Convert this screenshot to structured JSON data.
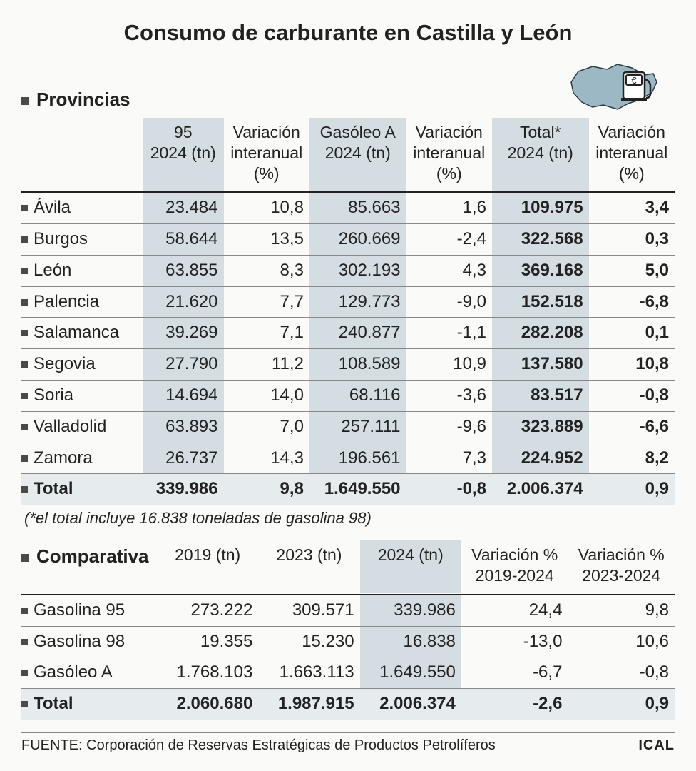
{
  "title": "Consumo de carburante en Castilla y León",
  "colors": {
    "shaded": "#d4dde2",
    "totalbg": "#e6ebee",
    "bullet": "#4a4a4a",
    "border": "#888888",
    "text": "#222222",
    "region_fill": "#9bb8c4",
    "region_stroke": "#2a3a44",
    "pump_body": "#ffffff"
  },
  "table1": {
    "section": "Provincias",
    "headers": {
      "c1a": "95",
      "c1b": "2024 (tn)",
      "c2a": "Variación",
      "c2b": "interanual",
      "c2c": "(%)",
      "c3a": "Gasóleo A",
      "c3b": "2024 (tn)",
      "c4a": "Variación",
      "c4b": "interanual",
      "c4c": "(%)",
      "c5a": "Total*",
      "c5b": "2024 (tn)",
      "c6a": "Variación",
      "c6b": "interanual",
      "c6c": "(%)"
    },
    "rows": [
      {
        "name": "Ávila",
        "c1": "23.484",
        "c2": "10,8",
        "c3": "85.663",
        "c4": "1,6",
        "c5": "109.975",
        "c6": "3,4"
      },
      {
        "name": "Burgos",
        "c1": "58.644",
        "c2": "13,5",
        "c3": "260.669",
        "c4": "-2,4",
        "c5": "322.568",
        "c6": "0,3"
      },
      {
        "name": "León",
        "c1": "63.855",
        "c2": "8,3",
        "c3": "302.193",
        "c4": "4,3",
        "c5": "369.168",
        "c6": "5,0"
      },
      {
        "name": "Palencia",
        "c1": "21.620",
        "c2": "7,7",
        "c3": "129.773",
        "c4": "-9,0",
        "c5": "152.518",
        "c6": "-6,8"
      },
      {
        "name": "Salamanca",
        "c1": "39.269",
        "c2": "7,1",
        "c3": "240.877",
        "c4": "-1,1",
        "c5": "282.208",
        "c6": "0,1"
      },
      {
        "name": "Segovia",
        "c1": "27.790",
        "c2": "11,2",
        "c3": "108.589",
        "c4": "10,9",
        "c5": "137.580",
        "c6": "10,8"
      },
      {
        "name": "Soria",
        "c1": "14.694",
        "c2": "14,0",
        "c3": "68.116",
        "c4": "-3,6",
        "c5": "83.517",
        "c6": "-0,8"
      },
      {
        "name": "Valladolid",
        "c1": "63.893",
        "c2": "7,0",
        "c3": "257.111",
        "c4": "-9,6",
        "c5": "323.889",
        "c6": "-6,6"
      },
      {
        "name": "Zamora",
        "c1": "26.737",
        "c2": "14,3",
        "c3": "196.561",
        "c4": "7,3",
        "c5": "224.952",
        "c6": "8,2"
      }
    ],
    "total": {
      "name": "Total",
      "c1": "339.986",
      "c2": "9,8",
      "c3": "1.649.550",
      "c4": "-0,8",
      "c5": "2.006.374",
      "c6": "0,9"
    },
    "note": "(*el total incluye 16.838 toneladas de gasolina 98)"
  },
  "table2": {
    "section": "Comparativa",
    "headers": {
      "c1": "2019 (tn)",
      "c2": "2023 (tn)",
      "c3": "2024 (tn)",
      "c4a": "Variación %",
      "c4b": "2019-2024",
      "c5a": "Variación %",
      "c5b": "2023-2024"
    },
    "rows": [
      {
        "name": "Gasolina 95",
        "c1": "273.222",
        "c2": "309.571",
        "c3": "339.986",
        "c4": "24,4",
        "c5": "9,8"
      },
      {
        "name": "Gasolina 98",
        "c1": "19.355",
        "c2": "15.230",
        "c3": "16.838",
        "c4": "-13,0",
        "c5": "10,6"
      },
      {
        "name": "Gasóleo A",
        "c1": "1.768.103",
        "c2": "1.663.113",
        "c3": "1.649.550",
        "c4": "-6,7",
        "c5": "-0,8"
      }
    ],
    "total": {
      "name": "Total",
      "c1": "2.060.680",
      "c2": "1.987.915",
      "c3": "2.006.374",
      "c4": "-2,6",
      "c5": "0,9"
    }
  },
  "footer": {
    "source_label": "FUENTE:",
    "source_text": "Corporación de Reservas Estratégicas de Productos Petrolíferos",
    "brand": "ICAL"
  },
  "euro": "€"
}
